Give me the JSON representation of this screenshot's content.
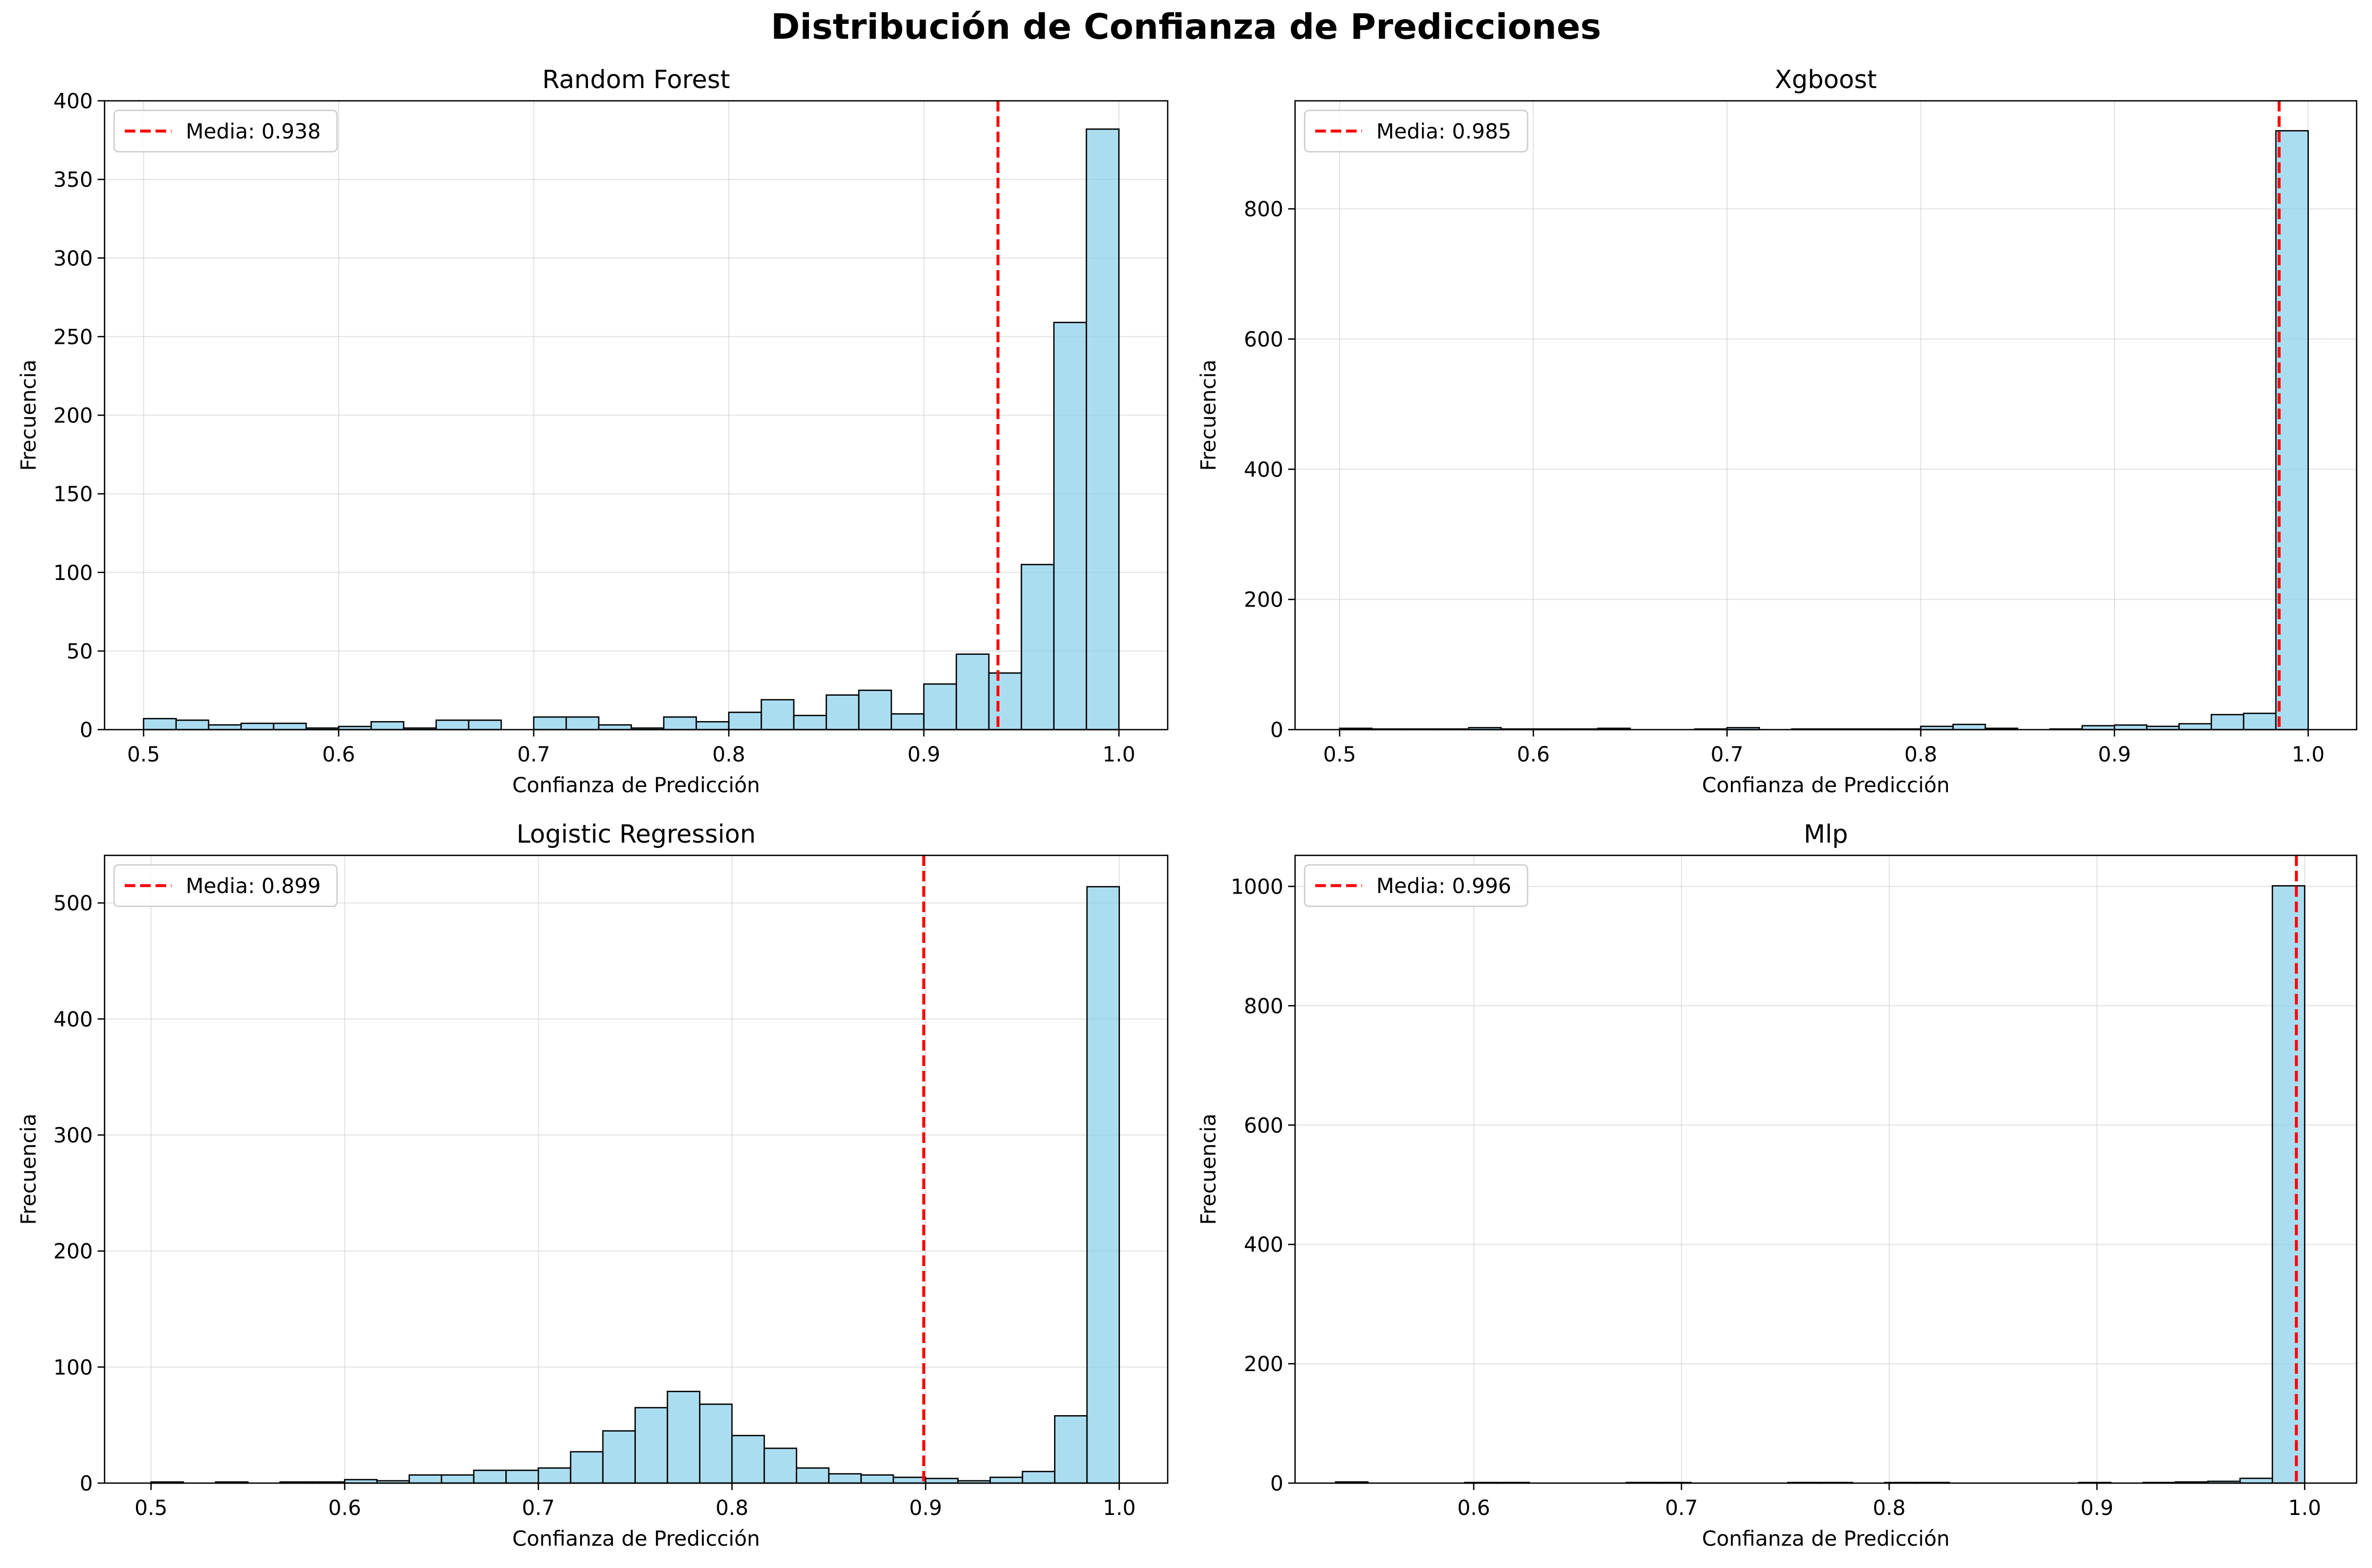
{
  "figure": {
    "title": "Distribución de Confianza de Predicciones"
  },
  "colors": {
    "bar_fill": "#87ceeb",
    "bar_edge": "#000000",
    "mean_line": "#ff0000",
    "grid": "#b0b0b0"
  },
  "chart_data": [
    {
      "type": "bar",
      "title": "Random Forest",
      "xlabel": "Confianza de Predicción",
      "ylabel": "Frecuencia",
      "xlim": [
        0.48,
        1.025
      ],
      "ylim": [
        0,
        400
      ],
      "xticks": [
        0.5,
        0.6,
        0.7,
        0.8,
        0.9,
        1.0
      ],
      "yticks": [
        0,
        50,
        100,
        150,
        200,
        250,
        300,
        350,
        400
      ],
      "bin_start": 0.5,
      "bin_end": 1.0,
      "values": [
        7,
        6,
        3,
        4,
        4,
        1,
        2,
        5,
        1,
        6,
        6,
        0,
        8,
        8,
        3,
        1,
        8,
        5,
        11,
        19,
        9,
        22,
        25,
        10,
        29,
        48,
        36,
        105,
        259,
        382
      ],
      "mean": 0.938,
      "legend": "Media: 0.938",
      "legend_position": "upper-left",
      "grid": true
    },
    {
      "type": "bar",
      "title": "Xgboost",
      "xlabel": "Confianza de Predicción",
      "ylabel": "Frecuencia",
      "xlim": [
        0.477,
        1.025
      ],
      "ylim": [
        0,
        966
      ],
      "xticks": [
        0.5,
        0.6,
        0.7,
        0.8,
        0.9,
        1.0
      ],
      "yticks": [
        0,
        200,
        400,
        600,
        800
      ],
      "bin_start": 0.5,
      "bin_end": 1.0,
      "values": [
        2,
        1,
        1,
        1,
        3,
        1,
        1,
        1,
        2,
        0,
        0,
        1,
        3,
        0,
        1,
        1,
        1,
        1,
        5,
        8,
        2,
        0,
        1,
        6,
        7,
        5,
        9,
        23,
        25,
        920
      ],
      "mean": 0.985,
      "legend": "Media: 0.985",
      "legend_position": "upper-left",
      "grid": true
    },
    {
      "type": "bar",
      "title": "Logistic Regression",
      "xlabel": "Confianza de Predicción",
      "ylabel": "Frecuencia",
      "xlim": [
        0.476,
        1.025
      ],
      "ylim": [
        0,
        541
      ],
      "xticks": [
        0.5,
        0.6,
        0.7,
        0.8,
        0.9,
        1.0
      ],
      "yticks": [
        0,
        100,
        200,
        300,
        400,
        500
      ],
      "bin_start": 0.5,
      "bin_end": 1.0,
      "values": [
        1,
        0,
        1,
        0,
        1,
        1,
        3,
        2,
        7,
        7,
        11,
        11,
        13,
        27,
        45,
        65,
        79,
        68,
        41,
        30,
        13,
        8,
        7,
        5,
        4,
        2,
        5,
        10,
        58,
        514
      ],
      "mean": 0.899,
      "legend": "Media: 0.899",
      "legend_position": "upper-left",
      "grid": true
    },
    {
      "type": "bar",
      "title": "Mlp",
      "xlabel": "Confianza de Predicción",
      "ylabel": "Frecuencia",
      "xlim": [
        0.514,
        1.025
      ],
      "ylim": [
        0,
        1052
      ],
      "xticks": [
        0.6,
        0.7,
        0.8,
        0.9,
        1.0
      ],
      "yticks": [
        0,
        200,
        400,
        600,
        800,
        1000
      ],
      "bin_start": 0.5335,
      "bin_end": 1.0,
      "values": [
        2,
        0,
        0,
        0,
        1,
        1,
        0,
        0,
        0,
        1,
        1,
        0,
        0,
        0,
        1,
        1,
        0,
        1,
        1,
        0,
        0,
        0,
        0,
        1,
        0,
        1,
        2,
        3,
        8,
        1001
      ],
      "mean": 0.996,
      "legend": "Media: 0.996",
      "legend_position": "upper-left",
      "grid": true
    }
  ]
}
